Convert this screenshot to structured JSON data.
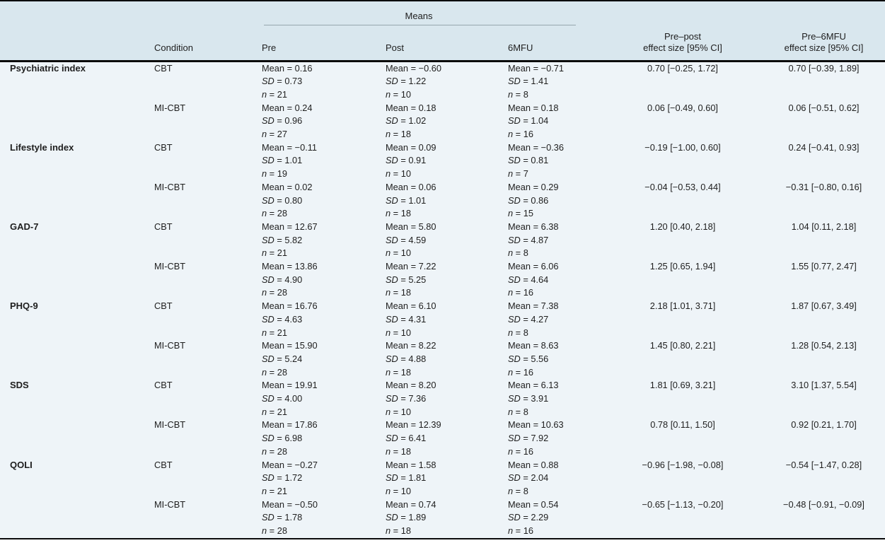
{
  "colors": {
    "header_bg": "#d9e7ee",
    "body_bg": "#eef4f8",
    "rule_dark": "#0b0b0b",
    "rule_light": "#95a7ae",
    "text": "#1e1e1e"
  },
  "header": {
    "means": "Means",
    "condition": "Condition",
    "pre": "Pre",
    "post": "Post",
    "mfu": "6MFU",
    "es_prepost_l1": "Pre–post",
    "es_prepost_l2": "effect size [95% CI]",
    "es_premfu_l1": "Pre–6MFU",
    "es_premfu_l2": "effect size [95% CI]"
  },
  "labels": {
    "mean": "Mean",
    "sd": "SD",
    "n": "n",
    "eq": " = "
  },
  "groups": [
    {
      "measure": "Psychiatric index",
      "rows": [
        {
          "condition": "CBT",
          "pre": {
            "mean": "0.16",
            "sd": "0.73",
            "n": "21"
          },
          "post": {
            "mean": "−0.60",
            "sd": "1.22",
            "n": "10"
          },
          "mfu": {
            "mean": "−0.71",
            "sd": "1.41",
            "n": "8"
          },
          "es_prepost": "0.70 [−0.25, 1.72]",
          "es_premfu": "0.70 [−0.39, 1.89]"
        },
        {
          "condition": "MI-CBT",
          "pre": {
            "mean": "0.24",
            "sd": "0.96",
            "n": "27"
          },
          "post": {
            "mean": "0.18",
            "sd": "1.02",
            "n": "18"
          },
          "mfu": {
            "mean": "0.18",
            "sd": "1.04",
            "n": "16"
          },
          "es_prepost": "0.06 [−0.49, 0.60]",
          "es_premfu": "0.06 [−0.51, 0.62]"
        }
      ]
    },
    {
      "measure": "Lifestyle index",
      "rows": [
        {
          "condition": "CBT",
          "pre": {
            "mean": "−0.11",
            "sd": "1.01",
            "n": "19"
          },
          "post": {
            "mean": "0.09",
            "sd": "0.91",
            "n": "10"
          },
          "mfu": {
            "mean": "−0.36",
            "sd": "0.81",
            "n": "7"
          },
          "es_prepost": "−0.19 [−1.00, 0.60]",
          "es_premfu": "0.24 [−0.41, 0.93]"
        },
        {
          "condition": "MI-CBT",
          "pre": {
            "mean": "0.02",
            "sd": "0.80",
            "n": "28"
          },
          "post": {
            "mean": "0.06",
            "sd": "1.01",
            "n": "18"
          },
          "mfu": {
            "mean": "0.29",
            "sd": "0.86",
            "n": "15"
          },
          "es_prepost": "−0.04 [−0.53, 0.44]",
          "es_premfu": "−0.31 [−0.80, 0.16]"
        }
      ]
    },
    {
      "measure": "GAD-7",
      "rows": [
        {
          "condition": "CBT",
          "pre": {
            "mean": "12.67",
            "sd": "5.82",
            "n": "21"
          },
          "post": {
            "mean": "5.80",
            "sd": "4.59",
            "n": "10"
          },
          "mfu": {
            "mean": "6.38",
            "sd": "4.87",
            "n": "8"
          },
          "es_prepost": "1.20 [0.40, 2.18]",
          "es_premfu": "1.04 [0.11, 2.18]"
        },
        {
          "condition": "MI-CBT",
          "pre": {
            "mean": "13.86",
            "sd": "4.90",
            "n": "28"
          },
          "post": {
            "mean": "7.22",
            "sd": "5.25",
            "n": "18"
          },
          "mfu": {
            "mean": "6.06",
            "sd": "4.64",
            "n": "16"
          },
          "es_prepost": "1.25 [0.65, 1.94]",
          "es_premfu": "1.55 [0.77, 2.47]"
        }
      ]
    },
    {
      "measure": "PHQ-9",
      "rows": [
        {
          "condition": "CBT",
          "pre": {
            "mean": "16.76",
            "sd": "4.63",
            "n": "21"
          },
          "post": {
            "mean": "6.10",
            "sd": "4.31",
            "n": "10"
          },
          "mfu": {
            "mean": "7.38",
            "sd": "4.27",
            "n": "8"
          },
          "es_prepost": "2.18 [1.01, 3.71]",
          "es_premfu": "1.87 [0.67, 3.49]"
        },
        {
          "condition": "MI-CBT",
          "pre": {
            "mean": "15.90",
            "sd": "5.24",
            "n": "28"
          },
          "post": {
            "mean": "8.22",
            "sd": "4.88",
            "n": "18"
          },
          "mfu": {
            "mean": "8.63",
            "sd": "5.56",
            "n": "16"
          },
          "es_prepost": "1.45 [0.80, 2.21]",
          "es_premfu": "1.28 [0.54, 2.13]"
        }
      ]
    },
    {
      "measure": "SDS",
      "rows": [
        {
          "condition": "CBT",
          "pre": {
            "mean": "19.91",
            "sd": "4.00",
            "n": "21"
          },
          "post": {
            "mean": "8.20",
            "sd": "7.36",
            "n": "10"
          },
          "mfu": {
            "mean": "6.13",
            "sd": "3.91",
            "n": "8"
          },
          "es_prepost": "1.81 [0.69, 3.21]",
          "es_premfu": "3.10 [1.37, 5.54]"
        },
        {
          "condition": "MI-CBT",
          "pre": {
            "mean": "17.86",
            "sd": "6.98",
            "n": "28"
          },
          "post": {
            "mean": "12.39",
            "sd": "6.41",
            "n": "18"
          },
          "mfu": {
            "mean": "10.63",
            "sd": "7.92",
            "n": "16"
          },
          "es_prepost": "0.78 [0.11, 1.50]",
          "es_premfu": "0.92 [0.21, 1.70]"
        }
      ]
    },
    {
      "measure": "QOLI",
      "rows": [
        {
          "condition": "CBT",
          "pre": {
            "mean": "−0.27",
            "sd": "1.72",
            "n": "21"
          },
          "post": {
            "mean": "1.58",
            "sd": "1.81",
            "n": "10"
          },
          "mfu": {
            "mean": "0.88",
            "sd": "2.04",
            "n": "8"
          },
          "es_prepost": "−0.96 [−1.98, −0.08]",
          "es_premfu": "−0.54 [−1.47, 0.28]"
        },
        {
          "condition": "MI-CBT",
          "pre": {
            "mean": "−0.50",
            "sd": "1.78",
            "n": "28"
          },
          "post": {
            "mean": "0.74",
            "sd": "1.89",
            "n": "18"
          },
          "mfu": {
            "mean": "0.54",
            "sd": "2.29",
            "n": "16"
          },
          "es_prepost": "−0.65 [−1.13, −0.20]",
          "es_premfu": "−0.48 [−0.91, −0.09]"
        }
      ]
    }
  ]
}
